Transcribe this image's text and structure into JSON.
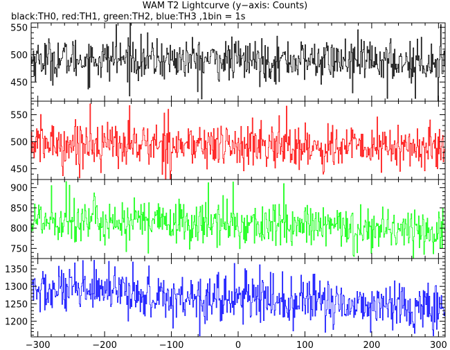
{
  "title": "WAM T2 Lightcurve (y−axis: Counts)",
  "subtitle": "black:TH0, red:TH1, green:TH2, blue:TH3 ,1bin = 1s",
  "chart_data": {
    "type": "line",
    "x_range": [
      -310,
      310
    ],
    "x_ticks": [
      -300,
      -200,
      -100,
      0,
      100,
      200,
      300
    ],
    "x_tick_labels": [
      "−300",
      "−200",
      "−100",
      "0",
      "100",
      "200",
      "300"
    ],
    "n_bins": 620,
    "bin_seconds": 1,
    "grid": false,
    "panels": [
      {
        "color": "#000000",
        "ylim": [
          415,
          558
        ],
        "y_ticks": [
          450,
          500,
          550
        ],
        "series": {
          "mean_start": 492,
          "mean_end": 488,
          "sigma": 19,
          "events": [
            {
              "x": -183,
              "y": 555
            },
            {
              "x": -162,
              "y": 558
            },
            {
              "x": -55,
              "y": 419
            },
            {
              "x": 171,
              "y": 430
            },
            {
              "x": 223,
              "y": 420
            },
            {
              "x": 265,
              "y": 420
            },
            {
              "x": 299,
              "y": 415
            },
            {
              "x": 303,
              "y": 555
            }
          ]
        }
      },
      {
        "color": "#ff0000",
        "ylim": [
          430,
          575
        ],
        "y_ticks": [
          450,
          500,
          550
        ],
        "series": {
          "mean_start": 497,
          "mean_end": 488,
          "sigma": 21,
          "events": [
            {
              "x": -222,
              "y": 570
            },
            {
              "x": -163,
              "y": 567
            },
            {
              "x": -105,
              "y": 560
            },
            {
              "x": 72,
              "y": 566
            },
            {
              "x": -263,
              "y": 437
            },
            {
              "x": 127,
              "y": 440
            },
            {
              "x": 242,
              "y": 445
            }
          ]
        }
      },
      {
        "color": "#00ff00",
        "ylim": [
          725,
          920
        ],
        "y_ticks": [
          750,
          800,
          850,
          900
        ],
        "series": {
          "mean_start": 822,
          "mean_end": 795,
          "sigma": 27,
          "events": [
            {
              "x": -280,
              "y": 905
            },
            {
              "x": -258,
              "y": 915
            },
            {
              "x": -253,
              "y": 906
            },
            {
              "x": -45,
              "y": 912
            },
            {
              "x": -8,
              "y": 914
            },
            {
              "x": 68,
              "y": 910
            },
            {
              "x": -168,
              "y": 742
            },
            {
              "x": -135,
              "y": 738
            },
            {
              "x": 172,
              "y": 733
            },
            {
              "x": 278,
              "y": 735
            }
          ]
        }
      },
      {
        "color": "#0000ff",
        "ylim": [
          1155,
          1380
        ],
        "y_ticks": [
          1200,
          1250,
          1300,
          1350
        ],
        "series": {
          "mean_start": 1288,
          "mean_end": 1240,
          "sigma": 33,
          "events": [
            {
              "x": -269,
              "y": 1358
            },
            {
              "x": -216,
              "y": 1375
            },
            {
              "x": -194,
              "y": 1372
            },
            {
              "x": -158,
              "y": 1370
            },
            {
              "x": -6,
              "y": 1366
            },
            {
              "x": 32,
              "y": 1362
            },
            {
              "x": -98,
              "y": 1180
            },
            {
              "x": 82,
              "y": 1172
            },
            {
              "x": 130,
              "y": 1168
            },
            {
              "x": 198,
              "y": 1168
            },
            {
              "x": 264,
              "y": 1165
            },
            {
              "x": 292,
              "y": 1158
            }
          ]
        }
      }
    ]
  }
}
